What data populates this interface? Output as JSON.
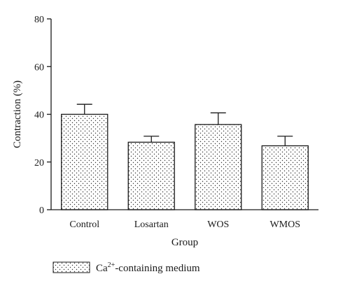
{
  "chart_data": {
    "type": "bar",
    "categories": [
      "Control",
      "Losartan",
      "WOS",
      "WMOS"
    ],
    "series": [
      {
        "name": "Ca2+-containing medium",
        "values": [
          40,
          28.3,
          35.7,
          26.8
        ],
        "error_upper": [
          44.2,
          30.8,
          40.6,
          30.8
        ]
      }
    ],
    "xlabel": "Group",
    "ylabel": "Contraction (%)",
    "ylim": [
      0,
      80
    ],
    "yticks": [
      0,
      20,
      40,
      60,
      80
    ],
    "grid": false,
    "legend_position": "bottom-left",
    "bar_pattern": "dotted"
  },
  "legend": {
    "label_base": "Ca",
    "label_sup": "2+",
    "label_rest": "-containing medium"
  }
}
